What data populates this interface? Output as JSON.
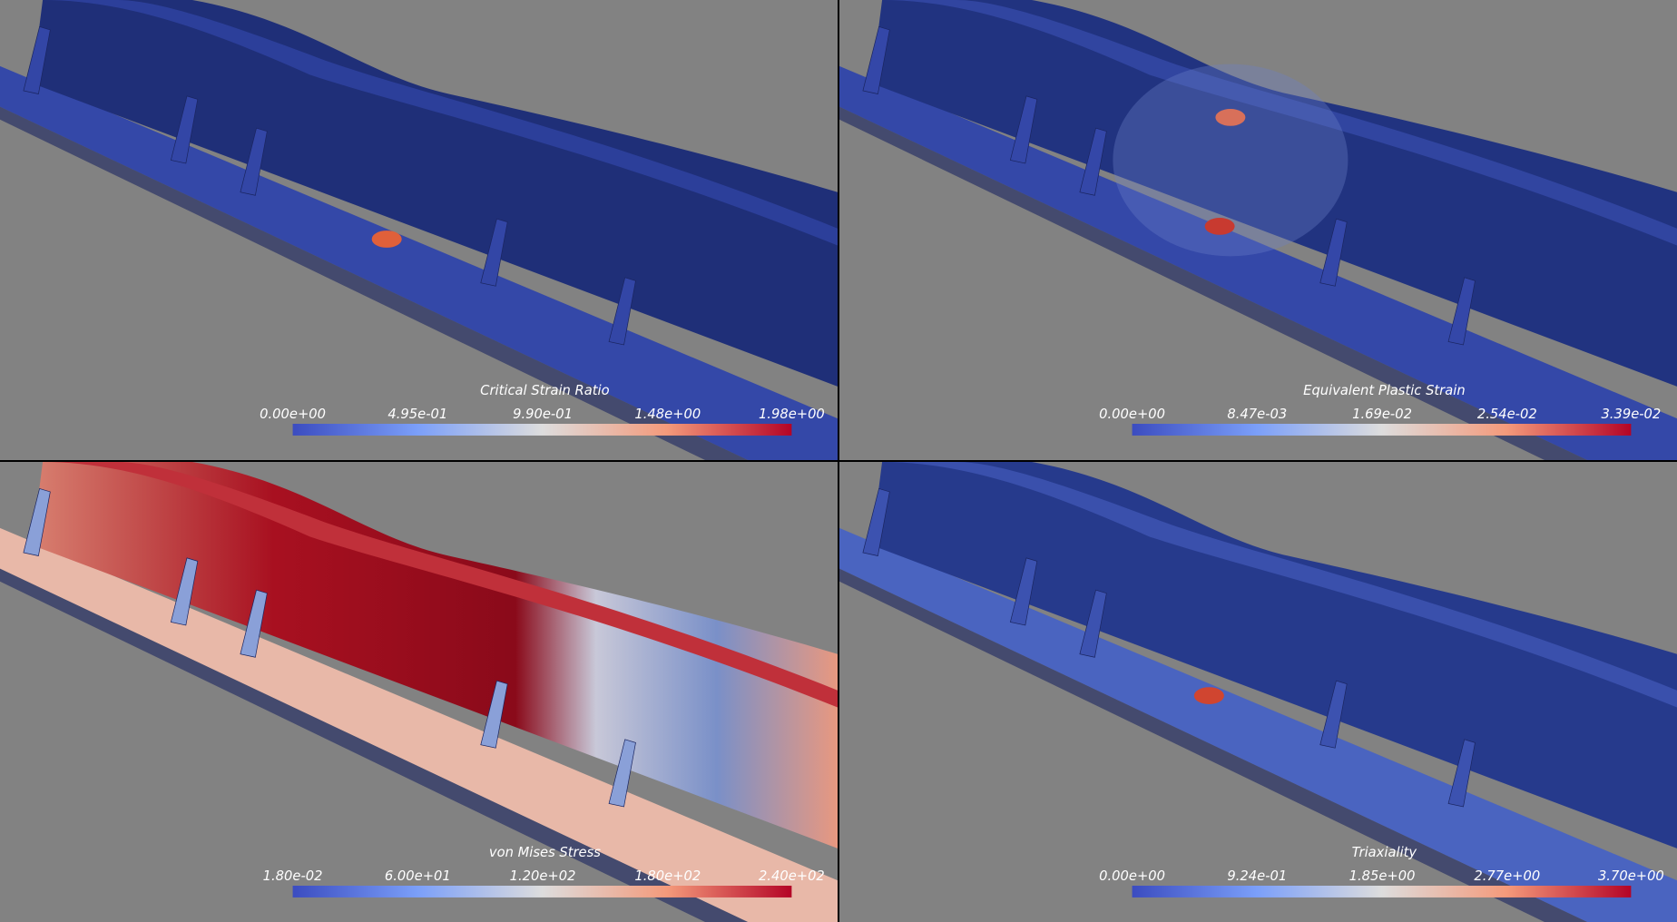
{
  "panels": [
    {
      "title": "Critical Strain Ratio",
      "ticks": [
        "0.00e+00",
        "4.95e-01",
        "9.90e-01",
        "1.48e+00",
        "1.98e+00"
      ]
    },
    {
      "title": "Equivalent Plastic Strain",
      "ticks": [
        "0.00e+00",
        "8.47e-03",
        "1.69e-02",
        "2.54e-02",
        "3.39e-02"
      ]
    },
    {
      "title": "von Mises Stress",
      "ticks": [
        "1.80e-02",
        "6.00e+01",
        "1.20e+02",
        "1.80e+02",
        "2.40e+02"
      ]
    },
    {
      "title": "Triaxiality",
      "ticks": [
        "0.00e+00",
        "9.24e-01",
        "1.85e+00",
        "2.77e+00",
        "3.70e+00"
      ]
    }
  ]
}
